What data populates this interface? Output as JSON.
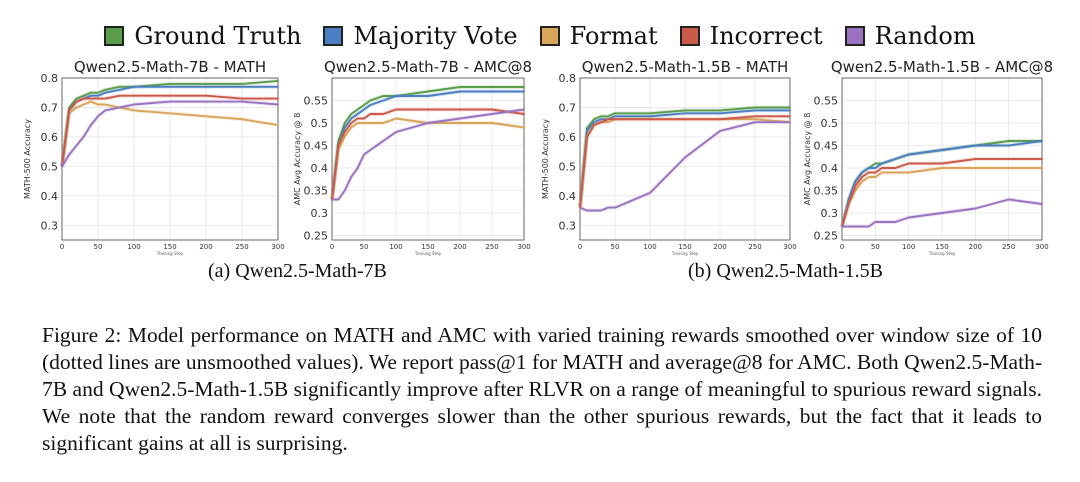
{
  "legend": [
    {
      "name": "Ground Truth",
      "color": "#5a9e4b"
    },
    {
      "name": "Majority Vote",
      "color": "#4a7fc1"
    },
    {
      "name": "Format",
      "color": "#d9a55b"
    },
    {
      "name": "Incorrect",
      "color": "#cc5a4a"
    },
    {
      "name": "Random",
      "color": "#9b72c0"
    }
  ],
  "subcaptions": {
    "a": "(a) Qwen2.5-Math-7B",
    "b": "(b) Qwen2.5-Math-1.5B"
  },
  "caption": "Figure 2: Model performance on MATH and AMC with varied training rewards smoothed over window size of 10 (dotted lines are unsmoothed values). We report pass@1 for MATH and average@8 for AMC. Both Qwen2.5-Math-7B and Qwen2.5-Math-1.5B significantly improve after RLVR on a range of meaningful to spurious reward signals. We note that the random reward converges slower than the other spurious rewards, but the fact that it leads to significant gains at all is surprising.",
  "chart_data": [
    {
      "type": "line",
      "title": "Qwen2.5-Math-7B - MATH",
      "xlabel": "Training Step",
      "ylabel": "MATH-500 Accuracy",
      "xlim": [
        0,
        300
      ],
      "ylim": [
        0.25,
        0.8
      ],
      "xticks": [
        0,
        50,
        100,
        150,
        200,
        250,
        300
      ],
      "yticks": [
        0.3,
        0.4,
        0.5,
        0.6,
        0.7,
        0.8
      ],
      "grid": true,
      "x": [
        0,
        10,
        20,
        30,
        40,
        50,
        60,
        80,
        100,
        150,
        200,
        250,
        300
      ],
      "series": [
        {
          "name": "Ground Truth",
          "values": [
            0.5,
            0.7,
            0.73,
            0.74,
            0.75,
            0.75,
            0.76,
            0.77,
            0.77,
            0.78,
            0.78,
            0.78,
            0.79
          ]
        },
        {
          "name": "Majority Vote",
          "values": [
            0.5,
            0.69,
            0.72,
            0.73,
            0.74,
            0.74,
            0.75,
            0.76,
            0.77,
            0.77,
            0.77,
            0.77,
            0.77
          ]
        },
        {
          "name": "Format",
          "values": [
            0.5,
            0.68,
            0.7,
            0.71,
            0.72,
            0.71,
            0.71,
            0.7,
            0.69,
            0.68,
            0.67,
            0.66,
            0.64
          ]
        },
        {
          "name": "Incorrect",
          "values": [
            0.5,
            0.69,
            0.72,
            0.73,
            0.73,
            0.73,
            0.73,
            0.74,
            0.74,
            0.74,
            0.74,
            0.73,
            0.73
          ]
        },
        {
          "name": "Random",
          "values": [
            0.5,
            0.54,
            0.57,
            0.6,
            0.64,
            0.67,
            0.69,
            0.7,
            0.71,
            0.72,
            0.72,
            0.72,
            0.71
          ]
        }
      ]
    },
    {
      "type": "line",
      "title": "Qwen2.5-Math-7B - AMC@8",
      "xlabel": "Training Step",
      "ylabel": "AMC Avg Accuracy @ 8",
      "xlim": [
        0,
        300
      ],
      "ylim": [
        0.24,
        0.6
      ],
      "xticks": [
        0,
        50,
        100,
        150,
        200,
        250,
        300
      ],
      "yticks": [
        0.25,
        0.3,
        0.35,
        0.4,
        0.45,
        0.5,
        0.55
      ],
      "grid": true,
      "x": [
        0,
        10,
        20,
        30,
        40,
        50,
        60,
        80,
        100,
        150,
        200,
        250,
        300
      ],
      "series": [
        {
          "name": "Ground Truth",
          "values": [
            0.33,
            0.46,
            0.5,
            0.52,
            0.53,
            0.54,
            0.55,
            0.56,
            0.56,
            0.57,
            0.58,
            0.58,
            0.58
          ]
        },
        {
          "name": "Majority Vote",
          "values": [
            0.33,
            0.45,
            0.49,
            0.51,
            0.52,
            0.53,
            0.54,
            0.55,
            0.56,
            0.56,
            0.57,
            0.57,
            0.57
          ]
        },
        {
          "name": "Format",
          "values": [
            0.33,
            0.44,
            0.47,
            0.49,
            0.5,
            0.5,
            0.5,
            0.5,
            0.51,
            0.5,
            0.5,
            0.5,
            0.49
          ]
        },
        {
          "name": "Incorrect",
          "values": [
            0.33,
            0.45,
            0.48,
            0.5,
            0.51,
            0.51,
            0.52,
            0.52,
            0.53,
            0.53,
            0.53,
            0.53,
            0.52
          ]
        },
        {
          "name": "Random",
          "values": [
            0.33,
            0.33,
            0.35,
            0.38,
            0.4,
            0.43,
            0.44,
            0.46,
            0.48,
            0.5,
            0.51,
            0.52,
            0.53
          ]
        }
      ]
    },
    {
      "type": "line",
      "title": "Qwen2.5-Math-1.5B - MATH",
      "xlabel": "Training Step",
      "ylabel": "MATH-500 Accuracy",
      "xlim": [
        0,
        300
      ],
      "ylim": [
        0.25,
        0.8
      ],
      "xticks": [
        0,
        50,
        100,
        150,
        200,
        250,
        300
      ],
      "yticks": [
        0.3,
        0.4,
        0.5,
        0.6,
        0.7,
        0.8
      ],
      "grid": true,
      "x": [
        0,
        10,
        20,
        30,
        40,
        50,
        60,
        80,
        100,
        150,
        200,
        250,
        300
      ],
      "series": [
        {
          "name": "Ground Truth",
          "values": [
            0.36,
            0.63,
            0.66,
            0.67,
            0.67,
            0.68,
            0.68,
            0.68,
            0.68,
            0.69,
            0.69,
            0.7,
            0.7
          ]
        },
        {
          "name": "Majority Vote",
          "values": [
            0.36,
            0.62,
            0.65,
            0.66,
            0.66,
            0.67,
            0.67,
            0.67,
            0.67,
            0.68,
            0.68,
            0.69,
            0.69
          ]
        },
        {
          "name": "Format",
          "values": [
            0.36,
            0.6,
            0.64,
            0.65,
            0.65,
            0.66,
            0.66,
            0.66,
            0.66,
            0.66,
            0.66,
            0.66,
            0.65
          ]
        },
        {
          "name": "Incorrect",
          "values": [
            0.36,
            0.6,
            0.64,
            0.65,
            0.66,
            0.66,
            0.66,
            0.66,
            0.66,
            0.66,
            0.66,
            0.67,
            0.67
          ]
        },
        {
          "name": "Random",
          "values": [
            0.36,
            0.35,
            0.35,
            0.35,
            0.36,
            0.36,
            0.37,
            0.39,
            0.41,
            0.53,
            0.62,
            0.65,
            0.65
          ]
        }
      ]
    },
    {
      "type": "line",
      "title": "Qwen2.5-Math-1.5B - AMC@8",
      "xlabel": "Training Step",
      "ylabel": "AMC Avg Accuracy @ 8",
      "xlim": [
        0,
        300
      ],
      "ylim": [
        0.24,
        0.6
      ],
      "xticks": [
        0,
        50,
        100,
        150,
        200,
        250,
        300
      ],
      "yticks": [
        0.25,
        0.3,
        0.35,
        0.4,
        0.45,
        0.5,
        0.55
      ],
      "grid": true,
      "x": [
        0,
        10,
        20,
        30,
        40,
        50,
        60,
        80,
        100,
        150,
        200,
        250,
        300
      ],
      "series": [
        {
          "name": "Ground Truth",
          "values": [
            0.27,
            0.33,
            0.37,
            0.39,
            0.4,
            0.41,
            0.41,
            0.42,
            0.43,
            0.44,
            0.45,
            0.46,
            0.46
          ]
        },
        {
          "name": "Majority Vote",
          "values": [
            0.27,
            0.33,
            0.37,
            0.39,
            0.4,
            0.4,
            0.41,
            0.42,
            0.43,
            0.44,
            0.45,
            0.45,
            0.46
          ]
        },
        {
          "name": "Format",
          "values": [
            0.27,
            0.32,
            0.35,
            0.37,
            0.38,
            0.38,
            0.39,
            0.39,
            0.39,
            0.4,
            0.4,
            0.4,
            0.4
          ]
        },
        {
          "name": "Incorrect",
          "values": [
            0.27,
            0.32,
            0.36,
            0.38,
            0.39,
            0.39,
            0.4,
            0.4,
            0.41,
            0.41,
            0.42,
            0.42,
            0.42
          ]
        },
        {
          "name": "Random",
          "values": [
            0.27,
            0.27,
            0.27,
            0.27,
            0.27,
            0.28,
            0.28,
            0.28,
            0.29,
            0.3,
            0.31,
            0.33,
            0.32
          ]
        }
      ]
    }
  ]
}
